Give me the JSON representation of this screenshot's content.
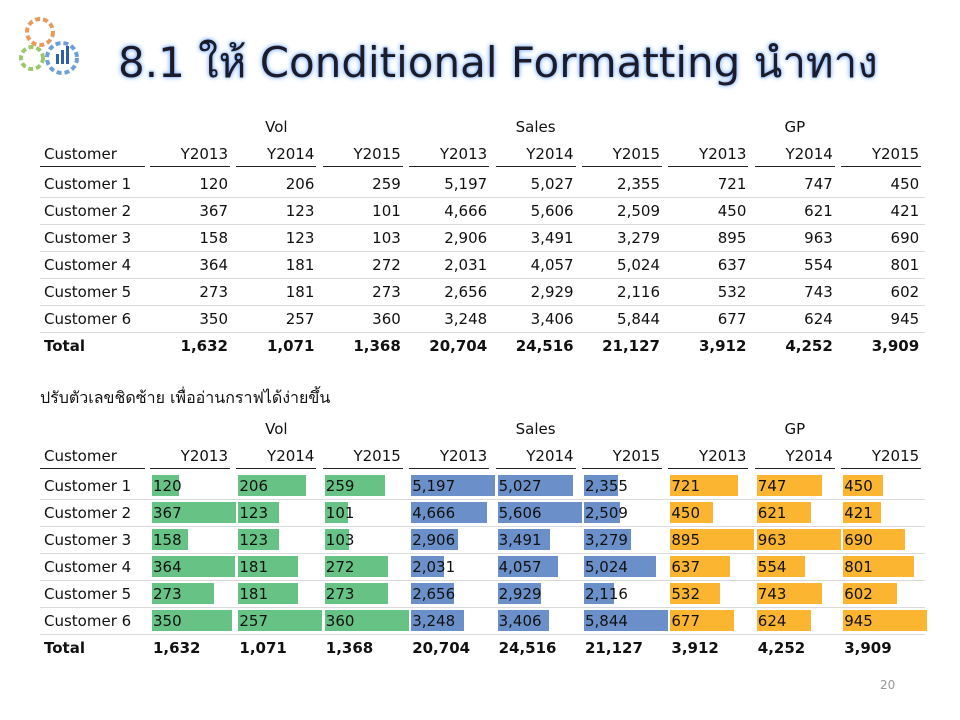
{
  "title": "8.1 ให้  Conditional Formatting นำทาง",
  "table1": {
    "group_headers": [
      "Vol",
      "Sales",
      "GP"
    ],
    "columns": [
      "Customer",
      "Y2013",
      "Y2014",
      "Y2015",
      "Y2013",
      "Y2014",
      "Y2015",
      "Y2013",
      "Y2014",
      "Y2015"
    ],
    "rows": [
      [
        "Customer 1",
        "120",
        "206",
        "259",
        "5,197",
        "5,027",
        "2,355",
        "721",
        "747",
        "450"
      ],
      [
        "Customer 2",
        "367",
        "123",
        "101",
        "4,666",
        "5,606",
        "2,509",
        "450",
        "621",
        "421"
      ],
      [
        "Customer 3",
        "158",
        "123",
        "103",
        "2,906",
        "3,491",
        "3,279",
        "895",
        "963",
        "690"
      ],
      [
        "Customer 4",
        "364",
        "181",
        "272",
        "2,031",
        "4,057",
        "5,024",
        "637",
        "554",
        "801"
      ],
      [
        "Customer 5",
        "273",
        "181",
        "273",
        "2,656",
        "2,929",
        "2,116",
        "532",
        "743",
        "602"
      ],
      [
        "Customer 6",
        "350",
        "257",
        "360",
        "3,248",
        "3,406",
        "5,844",
        "677",
        "624",
        "945"
      ]
    ],
    "total": [
      "Total",
      "1,632",
      "1,071",
      "1,368",
      "20,704",
      "24,516",
      "21,127",
      "3,912",
      "4,252",
      "3,909"
    ]
  },
  "caption": "ปรับตัวเลขชิดซ้าย  เพื่ออ่านกราฟได้ง่ายขึ้น",
  "table2": {
    "group_headers": [
      "Vol",
      "Sales",
      "GP"
    ],
    "bar_colors": [
      "#67c285",
      "#6b90c9",
      "#fbb530"
    ],
    "columns": [
      "Customer",
      "Y2013",
      "Y2014",
      "Y2015",
      "Y2013",
      "Y2014",
      "Y2015",
      "Y2013",
      "Y2014",
      "Y2015"
    ],
    "rows": [
      [
        "Customer 1",
        {
          "value": 120,
          "label": "120"
        },
        {
          "value": 206,
          "label": "206"
        },
        {
          "value": 259,
          "label": "259"
        },
        {
          "value": 5197,
          "label": "5,197"
        },
        {
          "value": 5027,
          "label": "5,027"
        },
        {
          "value": 2355,
          "label": "2,355"
        },
        {
          "value": 721,
          "label": "721"
        },
        {
          "value": 747,
          "label": "747"
        },
        {
          "value": 450,
          "label": "450"
        }
      ],
      [
        "Customer 2",
        {
          "value": 367,
          "label": "367"
        },
        {
          "value": 123,
          "label": "123"
        },
        {
          "value": 101,
          "label": "101"
        },
        {
          "value": 4666,
          "label": "4,666"
        },
        {
          "value": 5606,
          "label": "5,606"
        },
        {
          "value": 2509,
          "label": "2,509"
        },
        {
          "value": 450,
          "label": "450"
        },
        {
          "value": 621,
          "label": "621"
        },
        {
          "value": 421,
          "label": "421"
        }
      ],
      [
        "Customer 3",
        {
          "value": 158,
          "label": "158"
        },
        {
          "value": 123,
          "label": "123"
        },
        {
          "value": 103,
          "label": "103"
        },
        {
          "value": 2906,
          "label": "2,906"
        },
        {
          "value": 3491,
          "label": "3,491"
        },
        {
          "value": 3279,
          "label": "3,279"
        },
        {
          "value": 895,
          "label": "895"
        },
        {
          "value": 963,
          "label": "963"
        },
        {
          "value": 690,
          "label": "690"
        }
      ],
      [
        "Customer 4",
        {
          "value": 364,
          "label": "364"
        },
        {
          "value": 181,
          "label": "181"
        },
        {
          "value": 272,
          "label": "272"
        },
        {
          "value": 2031,
          "label": "2,031"
        },
        {
          "value": 4057,
          "label": "4,057"
        },
        {
          "value": 5024,
          "label": "5,024"
        },
        {
          "value": 637,
          "label": "637"
        },
        {
          "value": 554,
          "label": "554"
        },
        {
          "value": 801,
          "label": "801"
        }
      ],
      [
        "Customer 5",
        {
          "value": 273,
          "label": "273"
        },
        {
          "value": 181,
          "label": "181"
        },
        {
          "value": 273,
          "label": "273"
        },
        {
          "value": 2656,
          "label": "2,656"
        },
        {
          "value": 2929,
          "label": "2,929"
        },
        {
          "value": 2116,
          "label": "2,116"
        },
        {
          "value": 532,
          "label": "532"
        },
        {
          "value": 743,
          "label": "743"
        },
        {
          "value": 602,
          "label": "602"
        }
      ],
      [
        "Customer 6",
        {
          "value": 350,
          "label": "350"
        },
        {
          "value": 257,
          "label": "257"
        },
        {
          "value": 360,
          "label": "360"
        },
        {
          "value": 3248,
          "label": "3,248"
        },
        {
          "value": 3406,
          "label": "3,406"
        },
        {
          "value": 5844,
          "label": "5,844"
        },
        {
          "value": 677,
          "label": "677"
        },
        {
          "value": 624,
          "label": "624"
        },
        {
          "value": 945,
          "label": "945"
        }
      ]
    ],
    "total": [
      "Total",
      "1,632",
      "1,071",
      "1,368",
      "20,704",
      "24,516",
      "21,127",
      "3,912",
      "4,252",
      "3,909"
    ]
  },
  "page_number": "20"
}
